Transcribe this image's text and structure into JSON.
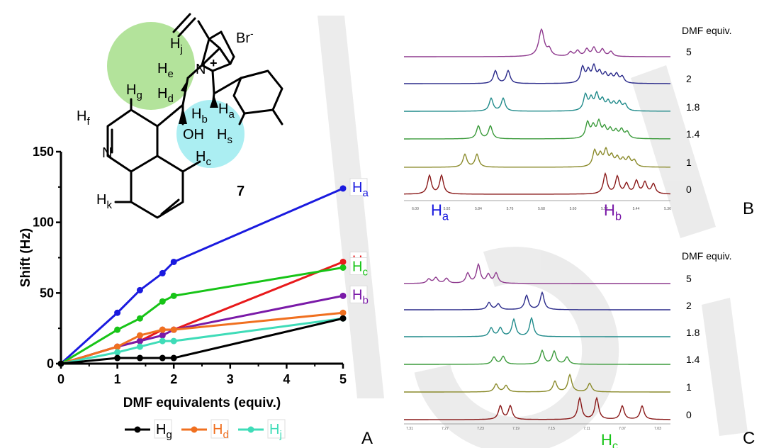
{
  "chart_data": [
    {
      "type": "line",
      "panel_label": "A",
      "xlabel": "DMF equivalents (equiv.)",
      "ylabel": "Shift (Hz)",
      "xlim": [
        0,
        5
      ],
      "ylim": [
        0,
        150
      ],
      "x_ticks": [
        "0",
        "1",
        "2",
        "3",
        "4",
        "5"
      ],
      "y_ticks": [
        "0",
        "50",
        "100",
        "150"
      ],
      "grid": false,
      "legend_position": "bottom",
      "x": [
        0,
        1,
        1.4,
        1.8,
        2,
        5
      ],
      "series": [
        {
          "name": "Ha",
          "sub": "a",
          "color": "#1a1adf",
          "legend": false,
          "end_label": true,
          "values": [
            0,
            36,
            52,
            64,
            72,
            124
          ]
        },
        {
          "name": "Hs",
          "sub": "s",
          "color": "#e8191b",
          "legend": false,
          "end_label": true,
          "values": [
            0,
            12,
            16,
            24,
            24,
            72
          ]
        },
        {
          "name": "Hc",
          "sub": "c",
          "color": "#17c417",
          "legend": false,
          "end_label": true,
          "values": [
            0,
            24,
            32,
            44,
            48,
            68
          ]
        },
        {
          "name": "Hb",
          "sub": "b",
          "color": "#7a1aa8",
          "legend": false,
          "end_label": true,
          "values": [
            0,
            12,
            16,
            20,
            24,
            48
          ]
        },
        {
          "name": "Hd",
          "sub": "d",
          "color": "#f07020",
          "legend": true,
          "end_label": false,
          "values": [
            0,
            12,
            20,
            24,
            24,
            36
          ]
        },
        {
          "name": "Hj",
          "sub": "j",
          "color": "#3fdcb8",
          "legend": true,
          "end_label": false,
          "values": [
            0,
            8,
            12,
            16,
            16,
            32
          ]
        },
        {
          "name": "Hg",
          "sub": "g",
          "color": "#000000",
          "legend": true,
          "end_label": false,
          "values": [
            0,
            4,
            4,
            4,
            4,
            32
          ]
        }
      ]
    },
    {
      "type": "line",
      "panel_label": "B",
      "header": "DMF equiv.",
      "equiv_labels": [
        "5",
        "2",
        "1.8",
        "1.4",
        "1",
        "0"
      ],
      "axis_labels": [
        "Ha",
        "Hb"
      ],
      "axis_ticks": [
        "6.00",
        "5.92",
        "5.84",
        "5.76",
        "5.68",
        "5.60",
        "5.52",
        "5.44",
        "5.36"
      ]
    },
    {
      "type": "line",
      "panel_label": "C",
      "header": "DMF equiv.",
      "equiv_labels": [
        "5",
        "2",
        "1.8",
        "1.4",
        "1",
        "0"
      ],
      "axis_labels": [
        "Hc"
      ],
      "axis_ticks": [
        "7.31",
        "7.27",
        "7.23",
        "7.19",
        "7.15",
        "7.11",
        "7.07",
        "7.03"
      ]
    }
  ],
  "structure": {
    "compound_number": "7",
    "counterion": "Br",
    "counterion_charge": "-",
    "cation_charge": "+",
    "heteroatoms": [
      "N",
      "N",
      "OH"
    ],
    "proton_labels": [
      {
        "base": "H",
        "sub": "j"
      },
      {
        "base": "H",
        "sub": "e"
      },
      {
        "base": "H",
        "sub": "g"
      },
      {
        "base": "H",
        "sub": "d"
      },
      {
        "base": "H",
        "sub": "f"
      },
      {
        "base": "H",
        "sub": "b"
      },
      {
        "base": "H",
        "sub": "a"
      },
      {
        "base": "H",
        "sub": "s"
      },
      {
        "base": "H",
        "sub": "c"
      },
      {
        "base": "H",
        "sub": "k"
      }
    ]
  },
  "spectra_colors": [
    "#8e3a8e",
    "#2a2a8a",
    "#1f8a8a",
    "#3a9a3a",
    "#8a8a2a",
    "#8a1a1a"
  ],
  "highlight_colors": {
    "green_circle": "#9ad97a",
    "cyan_circle": "#8fe8ee"
  },
  "watermark": "WL"
}
